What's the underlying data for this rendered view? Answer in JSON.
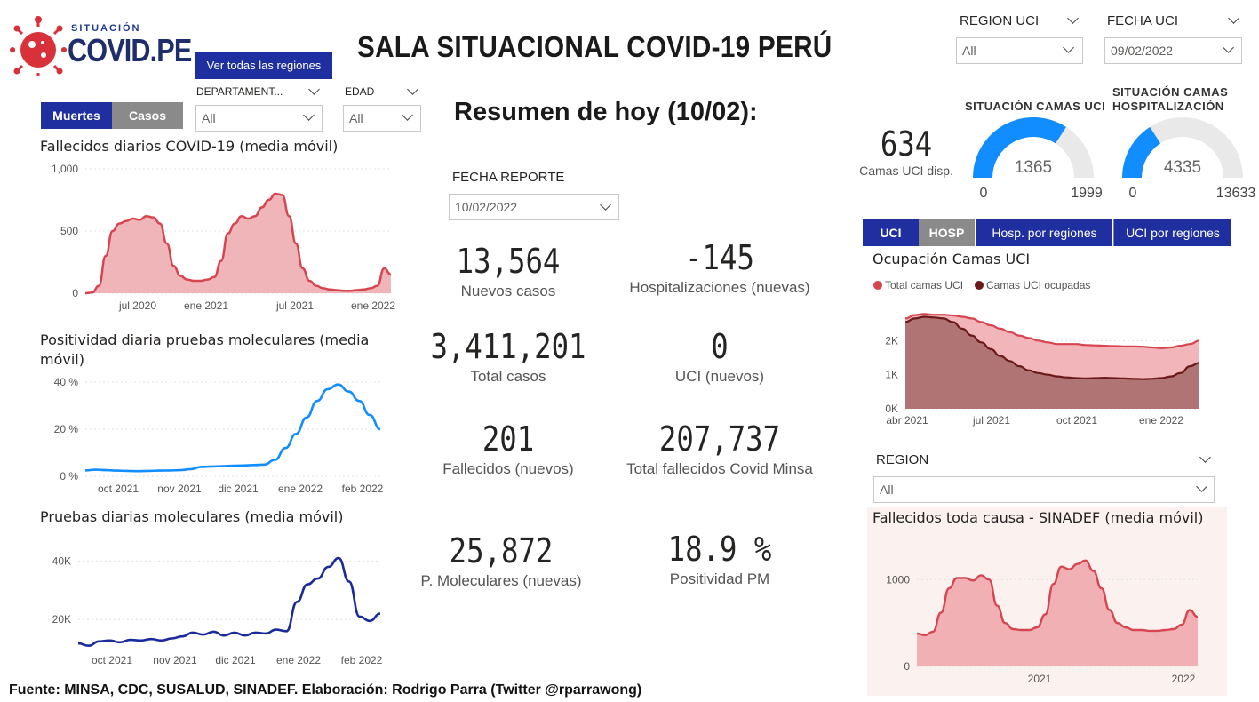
{
  "header": {
    "logo_sub": "SITUACIÓN",
    "logo_main": "COVID.PE",
    "regions_button": "Ver todas las regiones",
    "title": "SALA SITUACIONAL COVID-19 PERÚ",
    "summary_title": "Resumen de hoy (10/02):"
  },
  "filters": {
    "region_uci": {
      "label": "REGION UCI",
      "value": "All"
    },
    "fecha_uci": {
      "label": "FECHA UCI",
      "value": "09/02/2022"
    },
    "departamento": {
      "label": "DEPARTAMENT...",
      "value": "All"
    },
    "edad": {
      "label": "EDAD",
      "value": "All"
    },
    "fecha_reporte": {
      "label": "FECHA REPORTE",
      "value": "10/02/2022"
    },
    "region": {
      "label": "REGION",
      "value": "All"
    }
  },
  "left_tabs": {
    "muertes": "Muertes",
    "casos": "Casos"
  },
  "right_tabs": {
    "uci": "UCI",
    "hosp": "HOSP",
    "hosp_regiones": "Hosp. por regiones",
    "uci_regiones": "UCI por regiones"
  },
  "kpis": [
    {
      "value": "13,564",
      "label": "Nuevos casos"
    },
    {
      "value": "-145",
      "label": "Hospitalizaciones (nuevas)"
    },
    {
      "value": "3,411,201",
      "label": "Total casos"
    },
    {
      "value": "0",
      "label": "UCI (nuevos)"
    },
    {
      "value": "201",
      "label": "Fallecidos  (nuevos)"
    },
    {
      "value": "207,737",
      "label": "Total fallecidos Covid Minsa"
    },
    {
      "value": "25,872",
      "label": "P. Moleculares (nuevas)"
    },
    {
      "value": "18.9 %",
      "label": "Positividad PM"
    }
  ],
  "camas": {
    "value": "634",
    "label": "Camas UCI disp."
  },
  "gauges": [
    {
      "title_lines": [
        "SITUACIÓN CAMAS UCI"
      ],
      "value": 1365,
      "min": 0,
      "max": 1999,
      "value_label": "1365",
      "min_label": "0",
      "max_label": "1999",
      "color": "#118dff"
    },
    {
      "title_lines": [
        "SITUACIÓN CAMAS",
        "HOSPITALIZACIÓN"
      ],
      "value": 4335,
      "min": 0,
      "max": 13633,
      "value_label": "4335",
      "min_label": "0",
      "max_label": "13633",
      "color": "#118dff"
    }
  ],
  "footer": "Fuente: MINSA, CDC, SUSALUD, SINADEF. Elaboración: Rodrigo Parra (Twitter @rparrawong)",
  "colors": {
    "accent": "#1f2fa0",
    "red": "#d64550",
    "blue": "#118dff",
    "navy": "#1a2a9a",
    "maroon": "#6b1a1a"
  },
  "chart_data": [
    {
      "id": "fallecidos",
      "type": "area",
      "title": "Fallecidos diarios COVID-19 (media móvil)",
      "x_ticks": [
        "jul 2020",
        "ene 2021",
        "jul 2021",
        "ene 2022"
      ],
      "y_ticks": [
        "0",
        "500",
        "1,000"
      ],
      "ylim": [
        0,
        1000
      ],
      "x_start": "2020-03",
      "x_end": "2022-02",
      "series": [
        {
          "values": [
            0,
            5,
            60,
            300,
            500,
            560,
            580,
            600,
            590,
            620,
            610,
            560,
            400,
            220,
            140,
            110,
            100,
            100,
            110,
            130,
            260,
            480,
            560,
            620,
            600,
            620,
            690,
            750,
            800,
            790,
            620,
            400,
            200,
            100,
            60,
            40,
            30,
            25,
            20,
            20,
            25,
            30,
            40,
            60,
            200,
            150
          ]
        }
      ]
    },
    {
      "id": "positividad",
      "type": "line",
      "title": "Positividad diaria pruebas moleculares (media móvil)",
      "x_ticks": [
        "oct 2021",
        "nov 2021",
        "dic 2021",
        "ene 2022",
        "feb 2022"
      ],
      "y_ticks": [
        "0 %",
        "20 %",
        "40 %"
      ],
      "ylim": [
        0,
        40
      ],
      "series": [
        {
          "values": [
            2.5,
            2.8,
            2.6,
            2.4,
            2.3,
            2.2,
            2.3,
            2.4,
            2.5,
            2.6,
            3.0,
            4.0,
            4.2,
            4.3,
            4.5,
            4.6,
            4.8,
            5.0,
            7.0,
            12.0,
            18.0,
            25.0,
            32.0,
            37.0,
            39.0,
            36.0,
            32.0,
            26.0,
            20.0
          ]
        }
      ]
    },
    {
      "id": "pruebas",
      "type": "line",
      "title": "Pruebas diarias moleculares (media móvil)",
      "x_ticks": [
        "oct 2021",
        "nov 2021",
        "dic 2021",
        "ene 2022",
        "feb 2022"
      ],
      "y_ticks": [
        "20K",
        "40K"
      ],
      "ylim": [
        10000,
        45000
      ],
      "series": [
        {
          "values": [
            11800,
            11000,
            12500,
            12800,
            12200,
            13000,
            12800,
            13300,
            12800,
            13500,
            14200,
            15500,
            14800,
            15800,
            14500,
            15500,
            14500,
            15500,
            15200,
            16500,
            16000,
            26000,
            32000,
            34000,
            38000,
            41000,
            33000,
            21000,
            19500,
            22000
          ]
        }
      ]
    },
    {
      "id": "ocupacion_uci",
      "type": "area",
      "title": "Ocupación Camas UCI",
      "legend": [
        "Total camas UCI",
        "Camas UCI ocupadas"
      ],
      "x_ticks": [
        "abr 2021",
        "jul 2021",
        "oct 2021",
        "ene 2022"
      ],
      "y_ticks": [
        "0K",
        "1K",
        "2K"
      ],
      "ylim": [
        0,
        3000
      ],
      "series": [
        {
          "name": "Total camas UCI",
          "values": [
            2650,
            2750,
            2780,
            2760,
            2760,
            2740,
            2700,
            2650,
            2550,
            2450,
            2350,
            2250,
            2150,
            2080,
            2000,
            1950,
            1900,
            1900,
            1900,
            1870,
            1860,
            1850,
            1840,
            1830,
            1830,
            1820,
            1800,
            1780,
            1800,
            1850,
            1900,
            2000
          ]
        },
        {
          "name": "Camas UCI ocupadas",
          "values": [
            2550,
            2650,
            2700,
            2680,
            2650,
            2550,
            2350,
            2150,
            1950,
            1750,
            1550,
            1400,
            1250,
            1130,
            1050,
            1000,
            950,
            920,
            900,
            890,
            900,
            910,
            900,
            890,
            880,
            870,
            880,
            900,
            950,
            1050,
            1250,
            1350
          ]
        }
      ]
    },
    {
      "id": "sinadef",
      "type": "area",
      "title": "Fallecidos toda causa - SINADEF (media móvil)",
      "x_ticks": [
        "2021",
        "2022"
      ],
      "y_ticks": [
        "0",
        "1000"
      ],
      "ylim": [
        0,
        1300
      ],
      "series": [
        {
          "values": [
            380,
            360,
            400,
            620,
            900,
            1020,
            1020,
            990,
            1050,
            1000,
            700,
            500,
            430,
            420,
            420,
            450,
            600,
            950,
            1150,
            1120,
            1180,
            1220,
            1100,
            900,
            650,
            500,
            450,
            420,
            420,
            410,
            410,
            420,
            430,
            480,
            650,
            570
          ]
        }
      ]
    }
  ]
}
